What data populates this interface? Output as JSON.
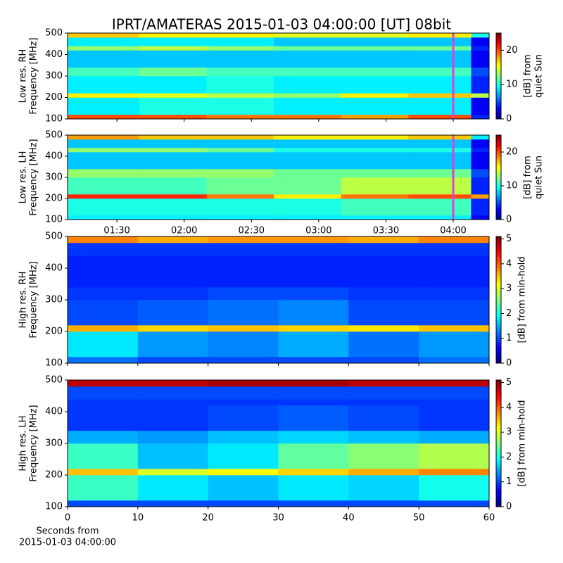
{
  "title": "IPRT/AMATERAS 2015-01-03 04:00:00 [UT]   08bit",
  "chart_data": [
    {
      "type": "heatmap",
      "ylabel": [
        "Low res. RH",
        "Frequency [MHz]"
      ],
      "xlim": [
        68,
        256
      ],
      "xticks": [
        90,
        120,
        150,
        180,
        210,
        240
      ],
      "xtick_labels": false,
      "ylim": [
        100,
        500
      ],
      "yticks": [
        100,
        200,
        300,
        400,
        500
      ],
      "x_edges": [
        68,
        100,
        130,
        160,
        190,
        220,
        248,
        256
      ],
      "y_edges": [
        100,
        120,
        200,
        220,
        300,
        340,
        420,
        440,
        480,
        500
      ],
      "z": [
        [
          20,
          20,
          19,
          19,
          18,
          20,
          4
        ],
        [
          9,
          10,
          10,
          9,
          9,
          9,
          3
        ],
        [
          16,
          15,
          14,
          13,
          16,
          17,
          14
        ],
        [
          9,
          9,
          10,
          9,
          9,
          9,
          4
        ],
        [
          11,
          12,
          11,
          11,
          11,
          11,
          5
        ],
        [
          8,
          8,
          8,
          8,
          8,
          8,
          3
        ],
        [
          13,
          14,
          13,
          12,
          12,
          12,
          4
        ],
        [
          9,
          9,
          9,
          8,
          8,
          8,
          3
        ],
        [
          17,
          16,
          16,
          15,
          15,
          16,
          10
        ]
      ],
      "colormap": "jet",
      "clim": [
        0,
        25
      ],
      "colorbar_ticks": [
        0,
        10,
        20
      ],
      "colorbar_label": [
        "[dB] from",
        "quiet Sun"
      ],
      "marker": {
        "x": 240,
        "color": "#e040e0"
      }
    },
    {
      "type": "heatmap",
      "ylabel": [
        "Low res. LH",
        "Frequency [MHz]"
      ],
      "xlim": [
        68,
        256
      ],
      "xticks": [
        {
          "value": 90,
          "label": "01:30"
        },
        {
          "value": 120,
          "label": "02:00"
        },
        {
          "value": 150,
          "label": "02:30"
        },
        {
          "value": 180,
          "label": "03:00"
        },
        {
          "value": 210,
          "label": "03:30"
        },
        {
          "value": 240,
          "label": "04:00"
        }
      ],
      "ylim": [
        100,
        500
      ],
      "yticks": [
        100,
        200,
        300,
        400,
        500
      ],
      "x_edges": [
        68,
        100,
        130,
        160,
        190,
        220,
        248,
        256
      ],
      "y_edges": [
        100,
        120,
        200,
        220,
        300,
        340,
        420,
        440,
        480,
        500
      ],
      "z": [
        [
          9,
          9,
          9,
          9,
          9,
          9,
          3
        ],
        [
          10,
          10,
          10,
          10,
          11,
          11,
          4
        ],
        [
          21,
          21,
          19,
          16,
          19,
          20,
          18
        ],
        [
          11,
          11,
          12,
          12,
          14,
          14,
          4
        ],
        [
          13,
          13,
          13,
          12,
          12,
          12,
          5
        ],
        [
          8,
          8,
          8,
          8,
          8,
          8,
          3
        ],
        [
          13,
          13,
          12,
          10,
          10,
          10,
          4
        ],
        [
          8,
          8,
          8,
          8,
          8,
          8,
          3
        ],
        [
          18,
          17,
          17,
          16,
          16,
          17,
          9
        ]
      ],
      "colormap": "jet",
      "clim": [
        0,
        25
      ],
      "colorbar_ticks": [
        0,
        10,
        20
      ],
      "colorbar_label": [
        "[dB] from",
        "quiet Sun"
      ],
      "marker": {
        "x": 240,
        "color": "#e040e0"
      }
    },
    {
      "type": "heatmap",
      "ylabel": [
        "High res. RH",
        "Frequency [MHz]"
      ],
      "xlim": [
        0,
        60
      ],
      "xticks": [
        0,
        10,
        20,
        30,
        40,
        50,
        60
      ],
      "xtick_labels": false,
      "ylim": [
        100,
        500
      ],
      "yticks": [
        100,
        200,
        300,
        400,
        500
      ],
      "x_edges": [
        0,
        10,
        20,
        30,
        40,
        50,
        60
      ],
      "y_edges": [
        100,
        120,
        200,
        220,
        300,
        340,
        420,
        440,
        480,
        500
      ],
      "z": [
        [
          1.2,
          1.0,
          1.0,
          1.0,
          1.0,
          1.2
        ],
        [
          1.8,
          1.4,
          1.3,
          1.5,
          1.2,
          1.4
        ],
        [
          3.6,
          3.4,
          3.5,
          3.4,
          3.3,
          3.5
        ],
        [
          1.0,
          1.1,
          1.2,
          1.3,
          1.0,
          1.0
        ],
        [
          0.9,
          0.9,
          1.0,
          1.0,
          0.9,
          0.9
        ],
        [
          0.8,
          0.8,
          0.8,
          0.8,
          0.8,
          0.8
        ],
        [
          0.8,
          0.8,
          0.8,
          0.8,
          0.8,
          0.8
        ],
        [
          0.9,
          0.9,
          0.9,
          0.9,
          0.9,
          0.9
        ],
        [
          3.8,
          3.6,
          3.7,
          3.7,
          3.6,
          3.8
        ]
      ],
      "colormap": "jet",
      "clim": [
        0,
        5.1
      ],
      "colorbar_ticks": [
        0,
        1,
        2,
        3,
        4,
        5
      ],
      "colorbar_label": [
        "[dB] from min-hold"
      ]
    },
    {
      "type": "heatmap",
      "ylabel": [
        "High res. LH",
        "Frequency [MHz]"
      ],
      "xlim": [
        0,
        60
      ],
      "xticks": [
        0,
        10,
        20,
        30,
        40,
        50,
        60
      ],
      "xlabel": [
        "Seconds from",
        "2015-01-03 04:00:00"
      ],
      "ylim": [
        100,
        500
      ],
      "yticks": [
        100,
        200,
        300,
        400,
        500
      ],
      "x_edges": [
        0,
        10,
        20,
        30,
        40,
        50,
        60
      ],
      "y_edges": [
        100,
        120,
        200,
        220,
        300,
        340,
        420,
        440,
        480,
        500
      ],
      "z": [
        [
          1.0,
          1.0,
          1.0,
          1.0,
          1.0,
          1.0
        ],
        [
          2.2,
          1.8,
          1.6,
          1.8,
          1.7,
          2.0
        ],
        [
          3.5,
          3.0,
          3.2,
          3.4,
          3.6,
          3.8
        ],
        [
          2.2,
          1.6,
          1.8,
          2.4,
          2.6,
          2.8
        ],
        [
          1.5,
          1.4,
          1.6,
          1.7,
          1.6,
          1.5
        ],
        [
          0.9,
          0.9,
          1.0,
          1.1,
          1.0,
          0.9
        ],
        [
          0.9,
          0.9,
          0.9,
          0.9,
          0.9,
          0.9
        ],
        [
          1.0,
          1.0,
          1.0,
          1.0,
          1.0,
          1.0
        ],
        [
          4.8,
          4.8,
          4.9,
          4.9,
          4.8,
          4.8
        ]
      ],
      "colormap": "jet",
      "clim": [
        0,
        5.1
      ],
      "colorbar_ticks": [
        0,
        1,
        2,
        3,
        4,
        5
      ],
      "colorbar_label": [
        "[dB] from min-hold"
      ]
    }
  ]
}
